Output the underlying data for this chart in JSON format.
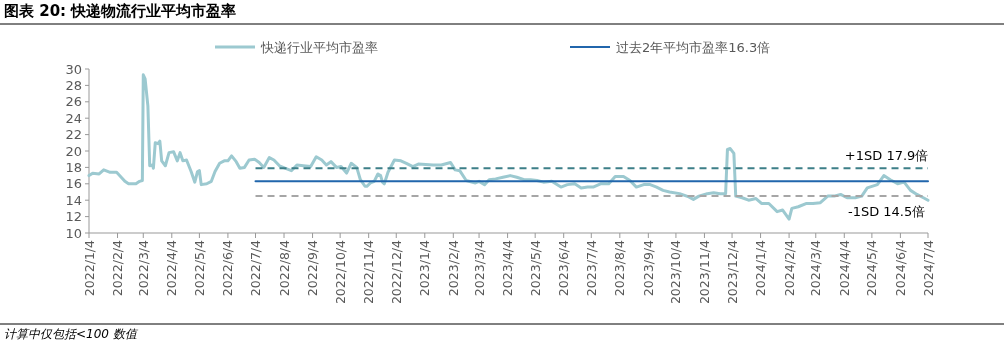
{
  "chart_data": {
    "type": "line",
    "title": "图表 20: 快递物流行业平均市盈率",
    "annotations": [
      "计算中仅包括<100 数值",
      {
        "text": "+1SD 17.9倍",
        "x": "2024-05-20",
        "y": 17.9
      },
      {
        "text": "-1SD 14.5倍",
        "x": "2024-05-20",
        "y": 14.5
      }
    ],
    "xlim": [
      "2022-01-04",
      "2024-07-04"
    ],
    "xticks": [
      {
        "value": "2022-01-04",
        "label": "2022/1/4"
      },
      {
        "value": "2022-02-04",
        "label": "2022/2/4"
      },
      {
        "value": "2022-03-04",
        "label": "2022/3/4"
      },
      {
        "value": "2022-04-04",
        "label": "2022/4/4"
      },
      {
        "value": "2022-05-04",
        "label": "2022/5/4"
      },
      {
        "value": "2022-06-04",
        "label": "2022/6/4"
      },
      {
        "value": "2022-07-04",
        "label": "2022/7/4"
      },
      {
        "value": "2022-08-04",
        "label": "2022/8/4"
      },
      {
        "value": "2022-09-04",
        "label": "2022/9/4"
      },
      {
        "value": "2022-10-04",
        "label": "2022/10/4"
      },
      {
        "value": "2022-11-04",
        "label": "2022/11/4"
      },
      {
        "value": "2022-12-04",
        "label": "2022/12/4"
      },
      {
        "value": "2023-01-04",
        "label": "2023/1/4"
      },
      {
        "value": "2023-02-04",
        "label": "2023/2/4"
      },
      {
        "value": "2023-03-04",
        "label": "2023/3/4"
      },
      {
        "value": "2023-04-04",
        "label": "2023/4/4"
      },
      {
        "value": "2023-05-04",
        "label": "2023/5/4"
      },
      {
        "value": "2023-06-04",
        "label": "2023/6/4"
      },
      {
        "value": "2023-07-04",
        "label": "2023/7/4"
      },
      {
        "value": "2023-08-04",
        "label": "2023/8/4"
      },
      {
        "value": "2023-09-04",
        "label": "2023/9/4"
      },
      {
        "value": "2023-10-04",
        "label": "2023/10/4"
      },
      {
        "value": "2023-11-04",
        "label": "2023/11/4"
      },
      {
        "value": "2023-12-04",
        "label": "2023/12/4"
      },
      {
        "value": "2024-01-04",
        "label": "2024/1/4"
      },
      {
        "value": "2024-02-04",
        "label": "2024/2/4"
      },
      {
        "value": "2024-03-04",
        "label": "2024/3/4"
      },
      {
        "value": "2024-04-04",
        "label": "2024/4/4"
      },
      {
        "value": "2024-05-04",
        "label": "2024/5/4"
      },
      {
        "value": "2024-06-04",
        "label": "2024/6/4"
      },
      {
        "value": "2024-07-04",
        "label": "2024/7/4"
      }
    ],
    "ylim": [
      10,
      30
    ],
    "yticks": [
      10,
      12,
      14,
      16,
      18,
      20,
      22,
      24,
      26,
      28,
      30
    ],
    "grid": false,
    "legend": "top",
    "series": [
      {
        "name": "快递行业平均市盈率",
        "color": "#9cc9d0",
        "line_style": "solid",
        "x": [
          "2022-01-04",
          "2022-01-08",
          "2022-01-15",
          "2022-01-20",
          "2022-01-27",
          "2022-02-03",
          "2022-02-08",
          "2022-02-12",
          "2022-02-16",
          "2022-02-24",
          "2022-02-28",
          "2022-03-03",
          "2022-03-04",
          "2022-03-06",
          "2022-03-09",
          "2022-03-11",
          "2022-03-14",
          "2022-03-15",
          "2022-03-17",
          "2022-03-20",
          "2022-03-22",
          "2022-03-24",
          "2022-03-28",
          "2022-04-01",
          "2022-04-06",
          "2022-04-10",
          "2022-04-13",
          "2022-04-16",
          "2022-04-20",
          "2022-04-25",
          "2022-04-29",
          "2022-05-02",
          "2022-05-04",
          "2022-05-06",
          "2022-05-12",
          "2022-05-17",
          "2022-05-21",
          "2022-05-26",
          "2022-05-31",
          "2022-06-04",
          "2022-06-08",
          "2022-06-13",
          "2022-06-17",
          "2022-06-22",
          "2022-06-27",
          "2022-07-03",
          "2022-07-08",
          "2022-07-13",
          "2022-07-19",
          "2022-07-24",
          "2022-07-30",
          "2022-08-05",
          "2022-08-12",
          "2022-08-18",
          "2022-08-25",
          "2022-09-02",
          "2022-09-08",
          "2022-09-14",
          "2022-09-19",
          "2022-09-24",
          "2022-09-30",
          "2022-10-05",
          "2022-10-11",
          "2022-10-16",
          "2022-10-22",
          "2022-10-26",
          "2022-10-31",
          "2022-11-02",
          "2022-11-06",
          "2022-11-10",
          "2022-11-14",
          "2022-11-17",
          "2022-11-19",
          "2022-11-21",
          "2022-11-25",
          "2022-12-02",
          "2022-12-09",
          "2022-12-15",
          "2022-12-22",
          "2022-12-28",
          "2023-01-13",
          "2023-01-22",
          "2023-02-01",
          "2023-02-06",
          "2023-02-11",
          "2023-02-18",
          "2023-02-28",
          "2023-03-04",
          "2023-03-10",
          "2023-03-15",
          "2023-03-22",
          "2023-03-30",
          "2023-04-07",
          "2023-04-14",
          "2023-04-22",
          "2023-04-29",
          "2023-05-06",
          "2023-05-13",
          "2023-05-22",
          "2023-06-01",
          "2023-06-08",
          "2023-06-16",
          "2023-06-23",
          "2023-06-30",
          "2023-07-06",
          "2023-07-14",
          "2023-07-23",
          "2023-07-30",
          "2023-08-08",
          "2023-08-15",
          "2023-08-22",
          "2023-08-30",
          "2023-09-06",
          "2023-09-13",
          "2023-09-20",
          "2023-09-27",
          "2023-10-08",
          "2023-10-18",
          "2023-10-23",
          "2023-10-29",
          "2023-11-07",
          "2023-11-14",
          "2023-11-21",
          "2023-11-27",
          "2023-11-29",
          "2023-12-02",
          "2023-12-06",
          "2023-12-08",
          "2023-12-15",
          "2023-12-22",
          "2023-12-30",
          "2024-01-05",
          "2024-01-13",
          "2024-01-22",
          "2024-01-28",
          "2024-02-04",
          "2024-02-07",
          "2024-02-14",
          "2024-02-23",
          "2024-03-01",
          "2024-03-09",
          "2024-03-17",
          "2024-03-24",
          "2024-03-31",
          "2024-04-07",
          "2024-04-16",
          "2024-04-23",
          "2024-04-29",
          "2024-05-10",
          "2024-05-17",
          "2024-05-24",
          "2024-06-01",
          "2024-06-08",
          "2024-06-15",
          "2024-06-22",
          "2024-06-29",
          "2024-07-04"
        ],
        "values": [
          17.0,
          17.3,
          17.2,
          17.7,
          17.4,
          17.4,
          16.8,
          16.3,
          16.0,
          16.0,
          16.3,
          16.4,
          29.3,
          28.8,
          25.5,
          18.2,
          18.3,
          17.9,
          21.0,
          20.9,
          21.2,
          18.8,
          18.2,
          19.8,
          19.9,
          18.8,
          19.8,
          18.8,
          18.9,
          17.5,
          16.2,
          17.5,
          17.6,
          15.9,
          16.0,
          16.3,
          17.5,
          18.5,
          18.8,
          18.8,
          19.4,
          18.7,
          17.9,
          18.0,
          18.9,
          19.0,
          18.6,
          18.0,
          19.2,
          18.9,
          18.2,
          17.9,
          17.6,
          18.3,
          18.2,
          18.1,
          19.3,
          18.9,
          18.3,
          18.7,
          18.0,
          18.1,
          17.3,
          18.5,
          18.0,
          16.5,
          15.7,
          15.7,
          16.1,
          16.3,
          17.2,
          17.0,
          16.2,
          16.0,
          17.4,
          18.9,
          18.8,
          18.5,
          18.1,
          18.4,
          18.3,
          18.3,
          18.6,
          17.7,
          17.6,
          16.4,
          16.1,
          16.3,
          15.9,
          16.5,
          16.6,
          16.8,
          17.0,
          16.8,
          16.5,
          16.5,
          16.4,
          16.2,
          16.3,
          15.6,
          15.9,
          16.0,
          15.5,
          15.6,
          15.6,
          16.0,
          16.0,
          16.9,
          16.9,
          16.4,
          15.6,
          15.9,
          15.9,
          15.6,
          15.2,
          15.0,
          14.8,
          14.4,
          14.1,
          14.5,
          14.8,
          14.9,
          14.8,
          14.8,
          20.2,
          20.3,
          19.7,
          14.5,
          14.3,
          14.0,
          14.2,
          13.6,
          13.6,
          12.6,
          12.8,
          11.7,
          13.0,
          13.2,
          13.6,
          13.6,
          13.7,
          14.5,
          14.5,
          14.7,
          14.3,
          14.3,
          14.5,
          15.5,
          15.9,
          17.0,
          16.5,
          16.0,
          16.2,
          15.2,
          14.7,
          14.3,
          14.0
        ]
      },
      {
        "name": "过去2年平均市盈率16.3倍",
        "color": "#2166ac",
        "line_style": "solid",
        "x": [
          "2022-07-04",
          "2024-07-04"
        ],
        "values": [
          16.3,
          16.3
        ]
      },
      {
        "color": "#3d7f88",
        "line_style": "dashed",
        "x": [
          "2022-07-04",
          "2024-07-04"
        ],
        "values": [
          17.9,
          17.9
        ]
      },
      {
        "color": "#a6a6a6",
        "line_style": "dashed",
        "x": [
          "2022-07-04",
          "2024-07-04"
        ],
        "values": [
          14.5,
          14.5
        ]
      }
    ]
  }
}
